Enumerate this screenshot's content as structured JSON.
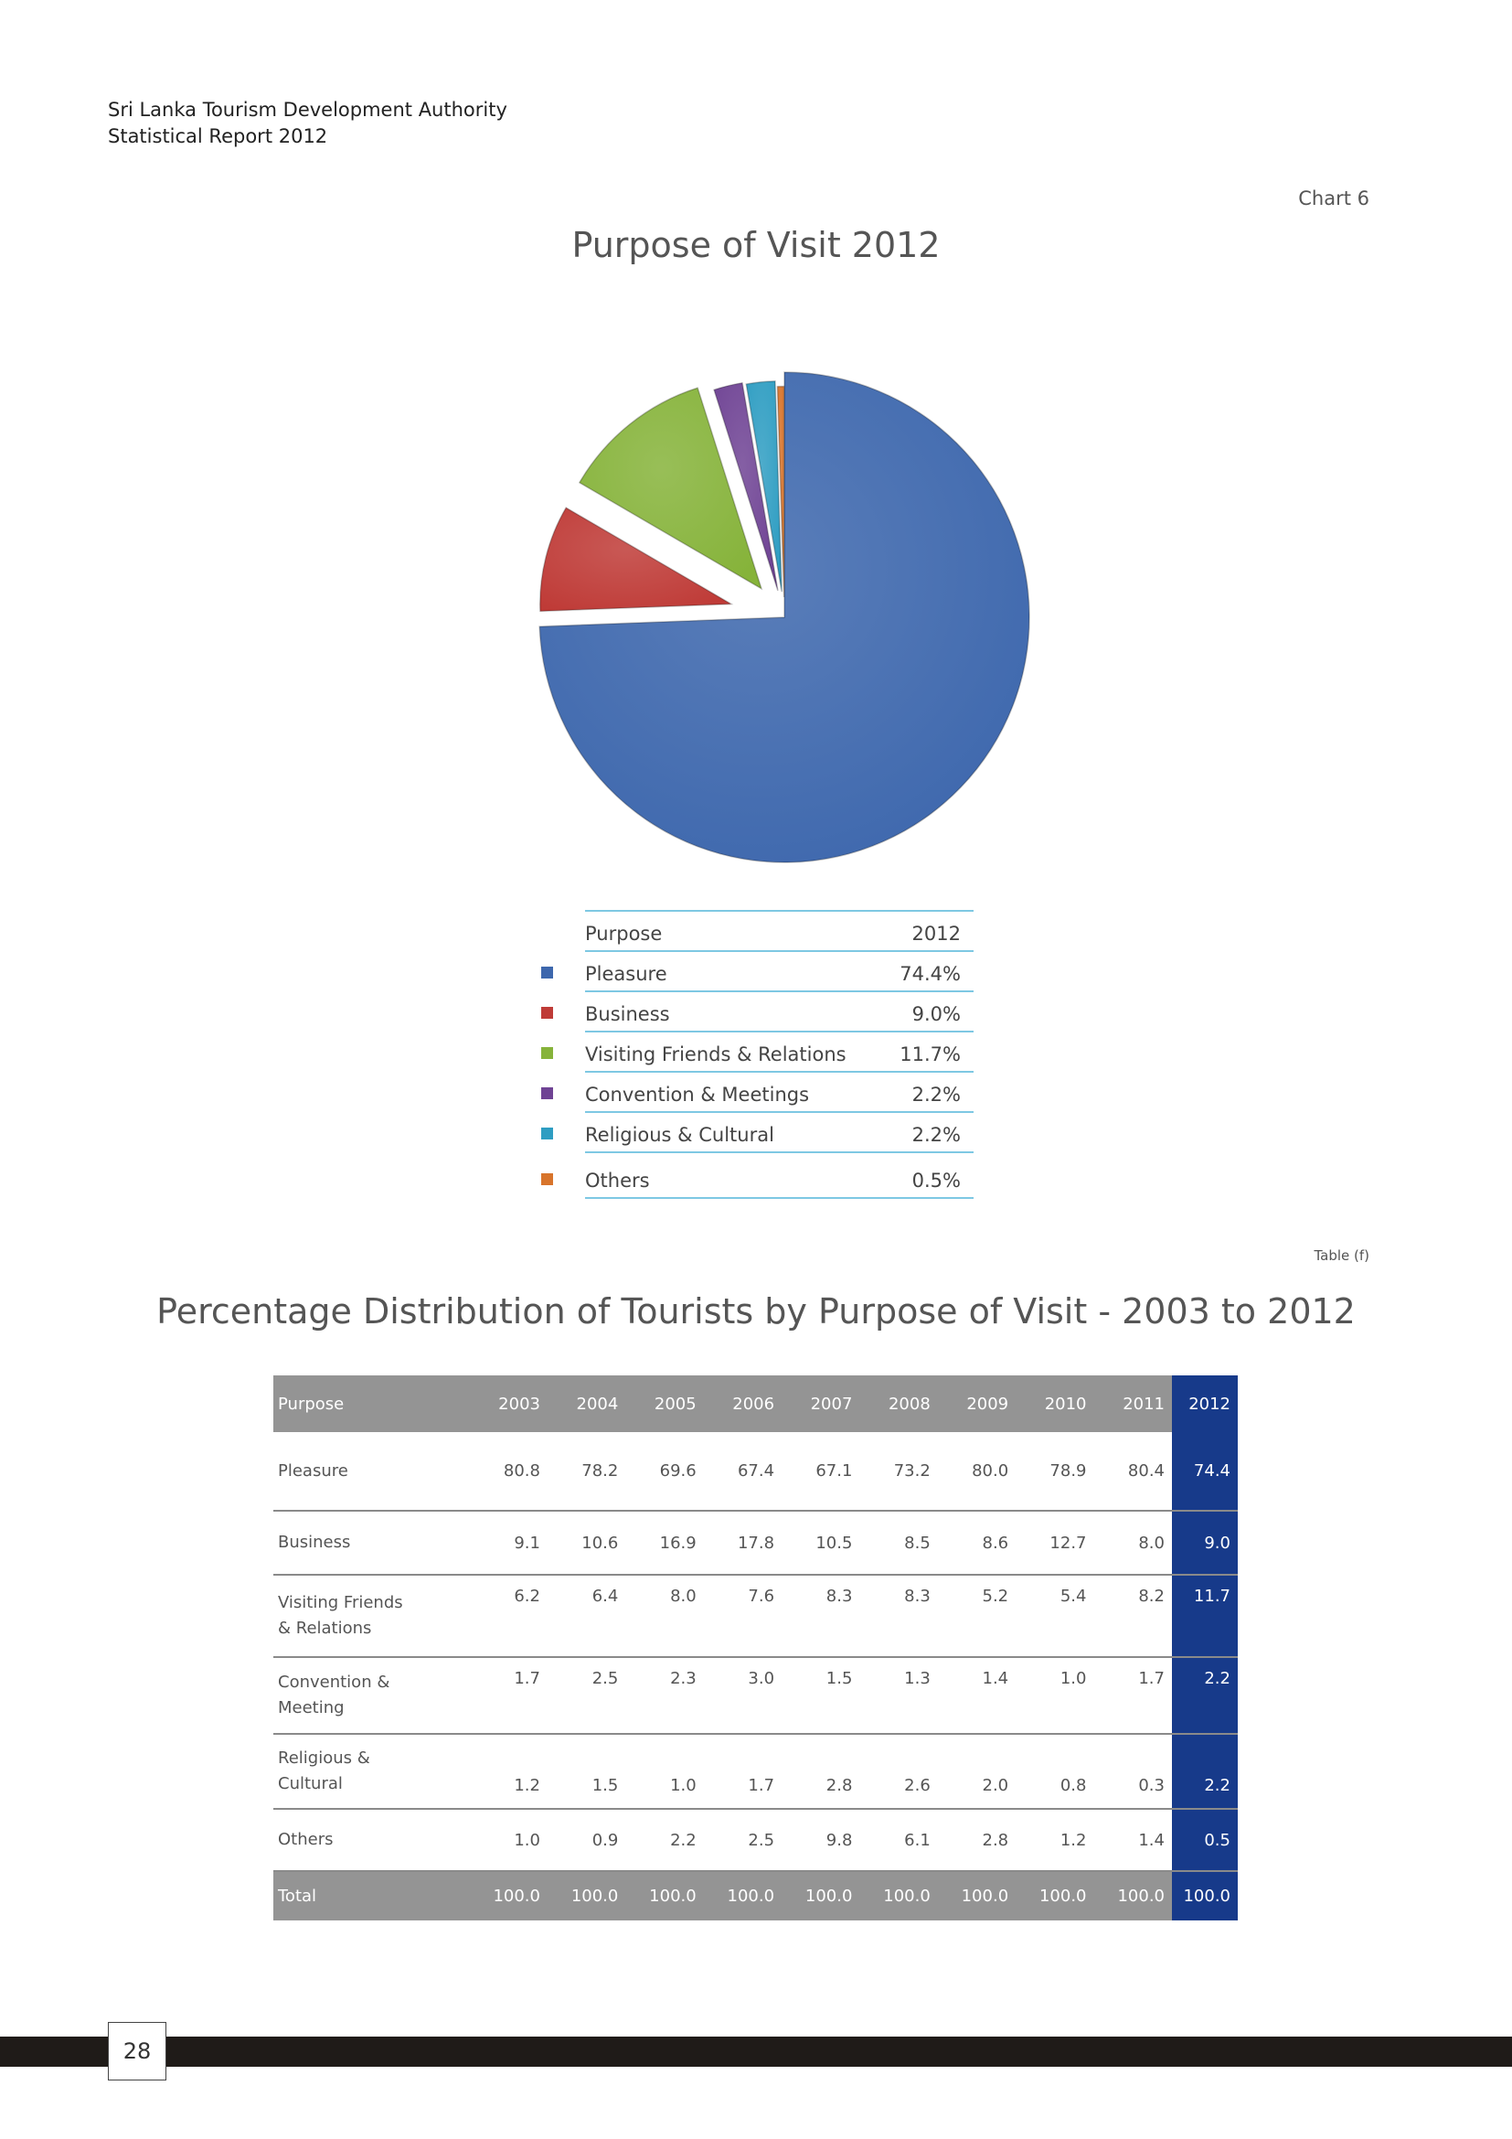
{
  "header": {
    "line1": "Sri Lanka Tourism Development Authority",
    "line2": "Statistical Report 2012"
  },
  "chart": {
    "label": "Chart 6",
    "title": "Purpose of Visit 2012"
  },
  "chart_data": {
    "type": "pie",
    "title": "Purpose of Visit 2012",
    "series_header": "Purpose",
    "value_header": "2012",
    "slices": [
      {
        "label": "Pleasure",
        "value": 74.4,
        "display": "74.4%",
        "color": "#3d67ad"
      },
      {
        "label": "Business",
        "value": 9.0,
        "display": "9.0%",
        "color": "#bf3b37"
      },
      {
        "label": "Visiting Friends & Relations",
        "value": 11.7,
        "display": "11.7%",
        "color": "#86b33a"
      },
      {
        "label": "Convention & Meetings",
        "value": 2.2,
        "display": "2.2%",
        "color": "#6f4394"
      },
      {
        "label": "Religious & Cultural",
        "value": 2.2,
        "display": "2.2%",
        "color": "#2e9dc2"
      },
      {
        "label": "Others",
        "value": 0.5,
        "display": "0.5%",
        "color": "#d8742b"
      }
    ]
  },
  "table": {
    "label": "Table (f)",
    "title": "Percentage Distribution of Tourists by Purpose of Visit - 2003 to 2012",
    "columns": [
      "Purpose",
      "2003",
      "2004",
      "2005",
      "2006",
      "2007",
      "2008",
      "2009",
      "2010",
      "2011",
      "2012"
    ],
    "rows": [
      {
        "purpose": [
          "Pleasure"
        ],
        "values": [
          "80.8",
          "78.2",
          "69.6",
          "67.4",
          "67.1",
          "73.2",
          "80.0",
          "78.9",
          "80.4",
          "74.4"
        ]
      },
      {
        "purpose": [
          "Business"
        ],
        "values": [
          "9.1",
          "10.6",
          "16.9",
          "17.8",
          "10.5",
          "8.5",
          "8.6",
          "12.7",
          "8.0",
          "9.0"
        ]
      },
      {
        "purpose": [
          "Visiting Friends",
          "& Relations"
        ],
        "values": [
          "6.2",
          "6.4",
          "8.0",
          "7.6",
          "8.3",
          "8.3",
          "5.2",
          "5.4",
          "8.2",
          "11.7"
        ]
      },
      {
        "purpose": [
          "Convention &",
          "Meeting"
        ],
        "values": [
          "1.7",
          "2.5",
          "2.3",
          "3.0",
          "1.5",
          "1.3",
          "1.4",
          "1.0",
          "1.7",
          "2.2"
        ]
      },
      {
        "purpose": [
          "Religious &",
          "Cultural"
        ],
        "values": [
          "1.2",
          "1.5",
          "1.0",
          "1.7",
          "2.8",
          "2.6",
          "2.0",
          "0.8",
          "0.3",
          "2.2"
        ]
      },
      {
        "purpose": [
          "Others"
        ],
        "values": [
          "1.0",
          "0.9",
          "2.2",
          "2.5",
          "9.8",
          "6.1",
          "2.8",
          "1.2",
          "1.4",
          "0.5"
        ]
      }
    ],
    "total": {
      "label": "Total",
      "values": [
        "100.0",
        "100.0",
        "100.0",
        "100.0",
        "100.0",
        "100.0",
        "100.0",
        "100.0",
        "100.0",
        "100.0"
      ]
    }
  },
  "page_number": "28"
}
